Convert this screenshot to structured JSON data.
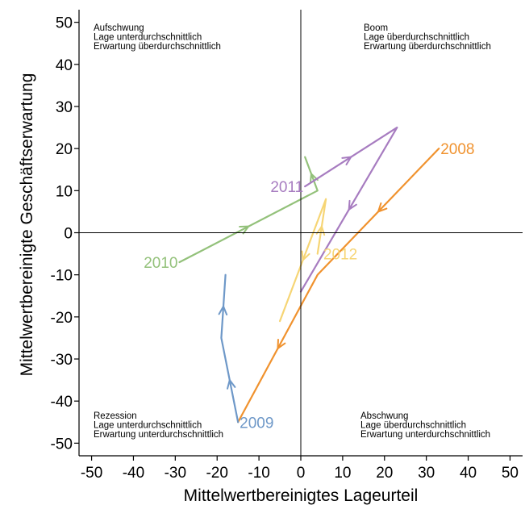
{
  "chart_data": {
    "type": "line",
    "xlabel": "Mittelwertbereinigtes Lageurteil",
    "ylabel": "Mittelwertbereinigte Geschäftserwartung",
    "xlim": [
      -53,
      53
    ],
    "ylim": [
      -53,
      53
    ],
    "x_ticks": [
      "-50",
      "-40",
      "-30",
      "-20",
      "-10",
      "0",
      "10",
      "20",
      "30",
      "40",
      "50"
    ],
    "y_ticks": [
      "50",
      "40",
      "30",
      "20",
      "10",
      "0",
      "-10",
      "-20",
      "-30",
      "-40",
      "-50"
    ],
    "grid": false,
    "quadrants": [
      {
        "position": "top-left",
        "lines": [
          "Aufschwung",
          "Lage unterdurchschnittlich",
          "Erwartung überdurchschnittlich"
        ]
      },
      {
        "position": "top-right",
        "lines": [
          "Boom",
          "Lage überdurchschnittlich",
          "Erwartung überdurchschnittlich"
        ]
      },
      {
        "position": "bottom-left",
        "lines": [
          "Rezession",
          "Lage unterdurchschnittlich",
          "Erwartung unterdurchschnittlich"
        ]
      },
      {
        "position": "bottom-right",
        "lines": [
          "Abschwung",
          "Lage überdurchschnittlich",
          "Erwartung unterdurchschnittlich"
        ]
      }
    ],
    "series": [
      {
        "name": "2008",
        "color": "#f0922e",
        "points": [
          [
            33,
            20
          ],
          [
            4,
            -10
          ],
          [
            -15,
            -45
          ]
        ],
        "label_at": [
          33,
          20
        ],
        "label_anchor": "start"
      },
      {
        "name": "2009",
        "color": "#6e98c8",
        "points": [
          [
            -15,
            -45
          ],
          [
            -19,
            -25
          ],
          [
            -18,
            -10
          ]
        ],
        "label_at": [
          -15,
          -45
        ],
        "label_anchor": "start"
      },
      {
        "name": "2010",
        "color": "#93c17a",
        "points": [
          [
            -29,
            -7
          ],
          [
            4,
            10
          ],
          [
            1,
            18
          ]
        ],
        "label_at": [
          -29,
          -7
        ],
        "label_anchor": "end"
      },
      {
        "name": "2011",
        "color": "#a77cc0",
        "points": [
          [
            1,
            11
          ],
          [
            23,
            25
          ],
          [
            0,
            -14
          ]
        ],
        "label_at": [
          1,
          11
        ],
        "label_anchor": "end"
      },
      {
        "name": "2012",
        "color": "#f6d575",
        "points": [
          [
            4,
            -5
          ],
          [
            6,
            8
          ],
          [
            -5,
            -21
          ]
        ],
        "label_at": [
          5,
          -5
        ],
        "label_anchor": "start"
      }
    ]
  }
}
